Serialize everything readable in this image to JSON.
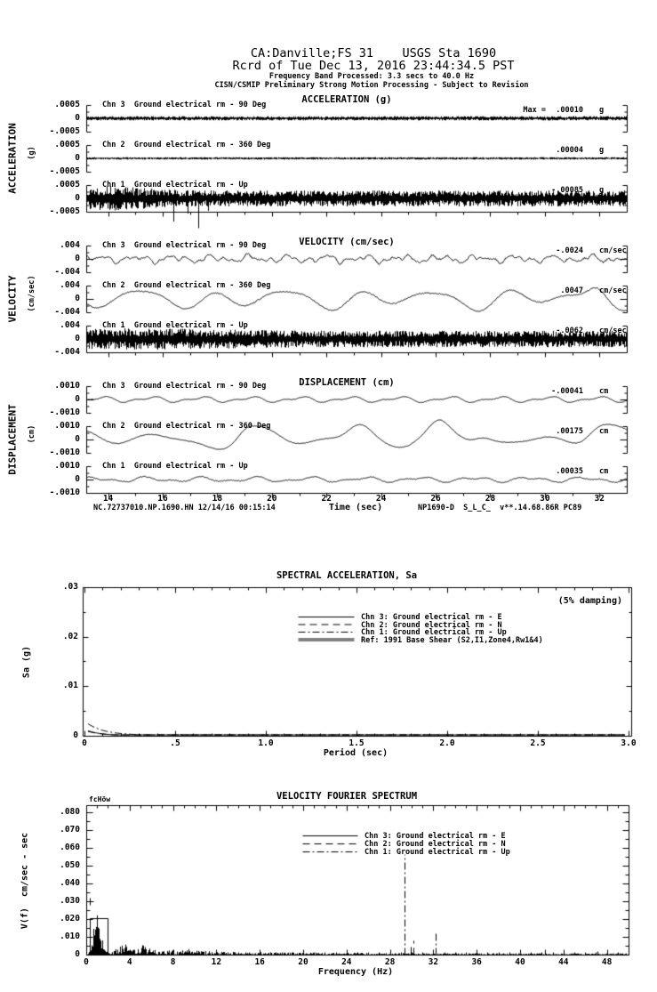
{
  "header": {
    "line1": "CA:Danville;FS 31    USGS Sta 1690",
    "line2": "Rcrd of Tue Dec 13, 2016 23:44:34.5 PST",
    "line3": "Frequency Band Processed: 3.3 secs to 40.0 Hz",
    "line4": "CISN/CSMIP Preliminary Strong Motion Processing - Subject to Revision"
  },
  "footer": {
    "left": "NC.72737010.NP.1690.HN 12/14/16 00:15:14",
    "right": "NP1690-D  S_L_C_  v**.14.68.86R PC89"
  },
  "colors": {
    "ink": "#000000",
    "background": "#ffffff"
  },
  "chart_data": [
    {
      "type": "line",
      "title": "ACCELERATION (g)",
      "ylabel": "ACCELERATION",
      "yunit_label": "(g)",
      "ylim": [
        -0.0005,
        0.0005
      ],
      "ytick_labels": [
        ".0005",
        "0",
        "-.0005"
      ],
      "xlim_sec": [
        13.2,
        33
      ],
      "traces": [
        {
          "label": "Chn 3  Ground electrical rm - 90 Deg",
          "peak_prefix": "Max =",
          "peak_value": ".00010",
          "peak_unit": "g",
          "synth": {
            "kind": "noise",
            "amp": 0.16,
            "seed": 11
          }
        },
        {
          "label": "Chn 2  Ground electrical rm - 360 Deg",
          "peak_value": ".00004",
          "peak_unit": "g",
          "synth": {
            "kind": "noise",
            "amp": 0.09,
            "seed": 12
          }
        },
        {
          "label": "Chn 1  Ground electrical rm - Up",
          "peak_value": "-.00085",
          "peak_unit": "g",
          "synth": {
            "kind": "noise",
            "amp": 0.6,
            "seed": 13,
            "env": [
              13.9,
              0.55,
              1.3
            ],
            "spikes": [
              [
                16.4,
                -1.7
              ],
              [
                16.9,
                -1.1
              ],
              [
                17.3,
                -2.2
              ],
              [
                17.65,
                -0.9
              ]
            ]
          }
        }
      ]
    },
    {
      "type": "line",
      "title": "VELOCITY (cm/sec)",
      "ylabel": "VELOCITY",
      "yunit_label": "(cm/sec)",
      "ylim": [
        -0.004,
        0.004
      ],
      "ytick_labels": [
        ".004",
        "0",
        "-.004"
      ],
      "xlim_sec": [
        13.2,
        33
      ],
      "traces": [
        {
          "label": "Chn 3  Ground electrical rm - 90 Deg",
          "peak_value": "-.0024",
          "peak_unit": "cm/sec",
          "synth": {
            "kind": "smooth",
            "seed": 21,
            "noise": 0.06,
            "freqs": [
              [
                0.72,
                0.16
              ],
              [
                1.35,
                0.13
              ],
              [
                2.2,
                0.09
              ],
              [
                3.4,
                0.05
              ]
            ]
          }
        },
        {
          "label": "Chn 2  Ground electrical rm - 360 Deg",
          "peak_value": ".0047",
          "peak_unit": "cm/sec",
          "synth": {
            "kind": "smooth",
            "seed": 22,
            "noise": 0.04,
            "freqs": [
              [
                0.37,
                0.5
              ],
              [
                0.2,
                0.28
              ],
              [
                0.56,
                0.2
              ]
            ],
            "bumps": [
              [
                31.9,
                0.65,
                0.3
              ]
            ]
          }
        },
        {
          "label": "Chn 1  Ground electrical rm - Up",
          "peak_value": "-.0062",
          "peak_unit": "cm/sec",
          "synth": {
            "kind": "noise",
            "amp": 0.62,
            "seed": 23,
            "env": [
              15.5,
              0.3,
              2.5
            ]
          }
        }
      ]
    },
    {
      "type": "line",
      "title": "DISPLACEMENT (cm)",
      "ylabel": "DISPLACEMENT",
      "yunit_label": "(cm)",
      "ylim": [
        -0.001,
        0.001
      ],
      "ytick_labels": [
        ".0010",
        "0",
        "-.0010"
      ],
      "xlim_sec": [
        13.2,
        33
      ],
      "xlabel": "Time (sec)",
      "xtick_labels": [
        "14",
        "16",
        "18",
        "20",
        "22",
        "24",
        "26",
        "28",
        "30",
        "32"
      ],
      "traces": [
        {
          "label": "Chn 3  Ground electrical rm - 90 Deg",
          "peak_value": "-.00041",
          "peak_unit": "cm",
          "synth": {
            "kind": "smooth",
            "seed": 31,
            "noise": 0.02,
            "freqs": [
              [
                0.55,
                0.16
              ],
              [
                1.1,
                0.09
              ]
            ]
          }
        },
        {
          "label": "Chn 2  Ground electrical rm - 360 Deg",
          "peak_value": ".00175",
          "peak_unit": "cm",
          "synth": {
            "kind": "smooth",
            "seed": 32,
            "noise": 0.02,
            "freqs": [
              [
                0.3,
                0.45
              ],
              [
                0.17,
                0.3
              ],
              [
                0.46,
                0.22
              ]
            ],
            "bumps": [
              [
                23.2,
                1.15,
                0.42
              ],
              [
                19.0,
                0.5,
                0.3
              ],
              [
                26.1,
                0.5,
                0.3
              ],
              [
                27.7,
                0.55,
                0.35
              ],
              [
                31.9,
                0.8,
                0.4
              ]
            ]
          }
        },
        {
          "label": "Chn 1  Ground electrical rm - Up",
          "peak_value": ".00035",
          "peak_unit": "cm",
          "synth": {
            "kind": "smooth",
            "seed": 33,
            "noise": 0.03,
            "freqs": [
              [
                0.5,
                0.14
              ],
              [
                0.95,
                0.09
              ]
            ]
          }
        }
      ]
    },
    {
      "type": "line",
      "title": "SPECTRAL ACCELERATION, Sa",
      "note": "(5% damping)",
      "ylabel": "Sa (g)",
      "xlabel": "Period (sec)",
      "xlim": [
        0,
        3
      ],
      "ylim": [
        0,
        0.03
      ],
      "xtick_labels": [
        "0",
        ".5",
        "1.0",
        "1.5",
        "2.0",
        "2.5",
        "3.0"
      ],
      "ytick_labels": [
        ".03",
        ".02",
        ".01",
        "0"
      ],
      "legend": [
        {
          "style": "solid",
          "label": "Chn 3: Ground electrical rm - E"
        },
        {
          "style": "dashed",
          "label": "Chn 2: Ground electrical rm - N"
        },
        {
          "style": "dashdot",
          "label": "Chn 1: Ground electrical rm - Up"
        },
        {
          "style": "double",
          "label": "Ref: 1991 Base Shear (S2,I1,Zone4,Rw1&4)"
        }
      ],
      "series": [
        {
          "name": "Chn 3: Ground electrical rm - E",
          "style": "solid",
          "peak_g": 0.0012,
          "decay_sec": 0.07
        },
        {
          "name": "Chn 2: Ground electrical rm - N",
          "style": "dashed",
          "peak_g": 0.001,
          "decay_sec": 0.08
        },
        {
          "name": "Chn 1: Ground electrical rm - Up",
          "style": "dashdot",
          "peak_g": 0.0027,
          "decay_sec": 0.09
        }
      ]
    },
    {
      "type": "line",
      "title": "VELOCITY FOURIER SPECTRUM",
      "corner_label": "fcHöw",
      "ylabel": "V(f)  cm/sec - sec",
      "xlabel": "Frequency (Hz)",
      "xlim": [
        0,
        50
      ],
      "ylim": [
        0,
        0.085
      ],
      "xtick_labels": [
        "0",
        "4",
        "8",
        "12",
        "16",
        "20",
        "24",
        "28",
        "32",
        "36",
        "40",
        "44",
        "48"
      ],
      "ytick_labels": [
        ".080",
        ".070",
        ".060",
        ".050",
        ".040",
        ".030",
        ".020",
        ".010",
        "0"
      ],
      "legend": [
        {
          "style": "solid",
          "label": "Chn 3: Ground electrical rm - E"
        },
        {
          "style": "dashed",
          "label": "Chn 2: Ground electrical rm - N"
        },
        {
          "style": "dashdot",
          "label": "Chn 1: Ground electrical rm - Up"
        }
      ],
      "features": {
        "lowfreq": {
          "center_hz": 0.85,
          "sigma_hz": 0.2,
          "peak_value": 0.033,
          "seed": 77
        },
        "floor": {
          "base": 0.0007,
          "amp": 0.0035,
          "decay_hz": 9
        },
        "bumps": [
          [
            3.4,
            0.0035
          ],
          [
            5.3,
            0.0028
          ],
          [
            9.5,
            0.0012
          ]
        ],
        "spikes": [
          {
            "hz": 29.35,
            "value": 0.0565,
            "style": "dashdot"
          },
          {
            "hz": 29.9,
            "value": 0.0045,
            "style": "solid"
          },
          {
            "hz": 30.15,
            "value": 0.008,
            "style": "dashed"
          },
          {
            "hz": 32.2,
            "value": 0.0125,
            "style": "dashdot"
          },
          {
            "hz": 42.3,
            "value": 0.003,
            "style": "solid"
          },
          {
            "hz": 47.1,
            "value": 0.002,
            "style": "solid"
          }
        ],
        "plus_marker": {
          "hz": 0.35,
          "value": 0.03
        },
        "box_marker": {
          "hz_from": 0.3,
          "hz_to": 2.0,
          "value": 0.0205
        }
      }
    }
  ]
}
